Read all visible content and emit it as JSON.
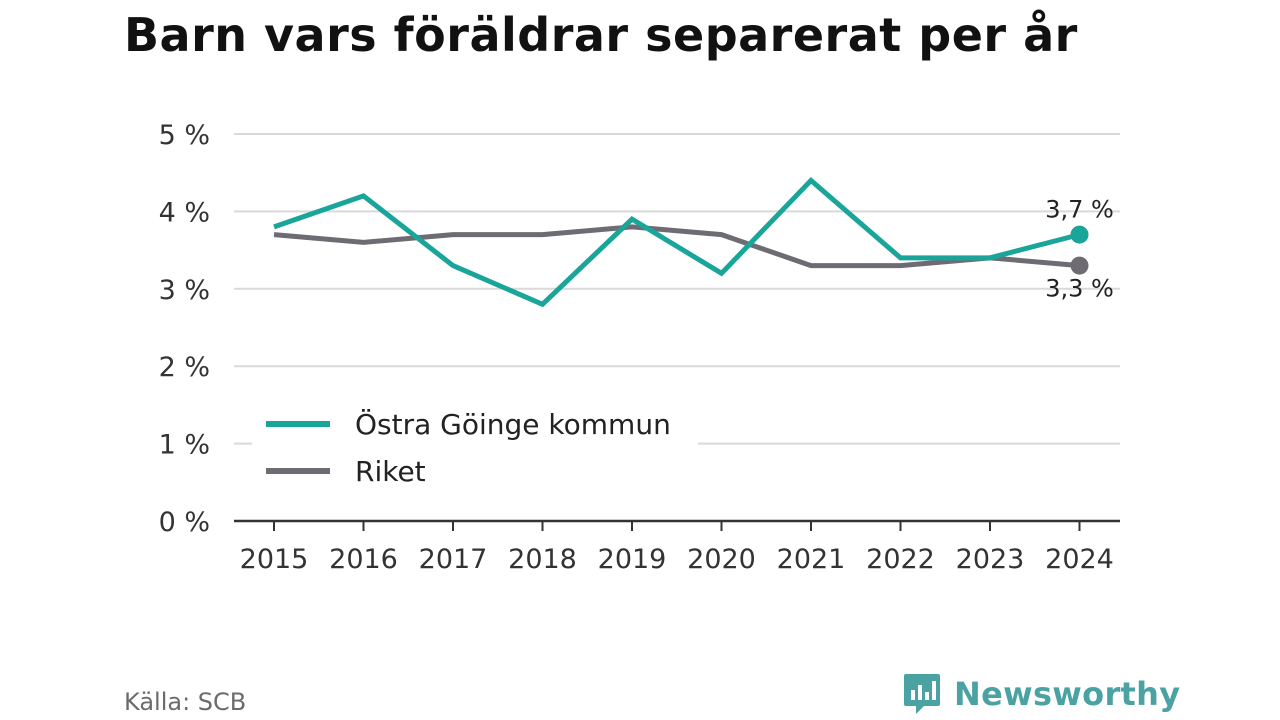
{
  "title": "Barn vars föräldrar separerat per år",
  "source": "Källa: SCB",
  "brand": {
    "name": "Newsworthy",
    "icon": "newsworthy-logo-icon",
    "color": "#4aa3a2"
  },
  "chart_data": {
    "type": "line",
    "title": "Barn vars föräldrar separerat per år",
    "x": [
      "2015",
      "2016",
      "2017",
      "2018",
      "2019",
      "2020",
      "2021",
      "2022",
      "2023",
      "2024"
    ],
    "ylim": [
      0,
      5
    ],
    "yticks": [
      0,
      1,
      2,
      3,
      4,
      5
    ],
    "ytick_labels": [
      "0 %",
      "1 %",
      "2 %",
      "3 %",
      "4 %",
      "5 %"
    ],
    "grid": "horizontal",
    "legend_position": "bottom-left",
    "series": [
      {
        "name": "Östra Göinge kommun",
        "color": "#1aa59b",
        "values": [
          3.8,
          4.2,
          3.3,
          2.8,
          3.9,
          3.2,
          4.4,
          3.4,
          3.4,
          3.7
        ],
        "end_label": "3,7 %"
      },
      {
        "name": "Riket",
        "color": "#6e6c72",
        "values": [
          3.7,
          3.6,
          3.7,
          3.7,
          3.8,
          3.7,
          3.3,
          3.3,
          3.4,
          3.3
        ],
        "end_label": "3,3 %"
      }
    ]
  }
}
